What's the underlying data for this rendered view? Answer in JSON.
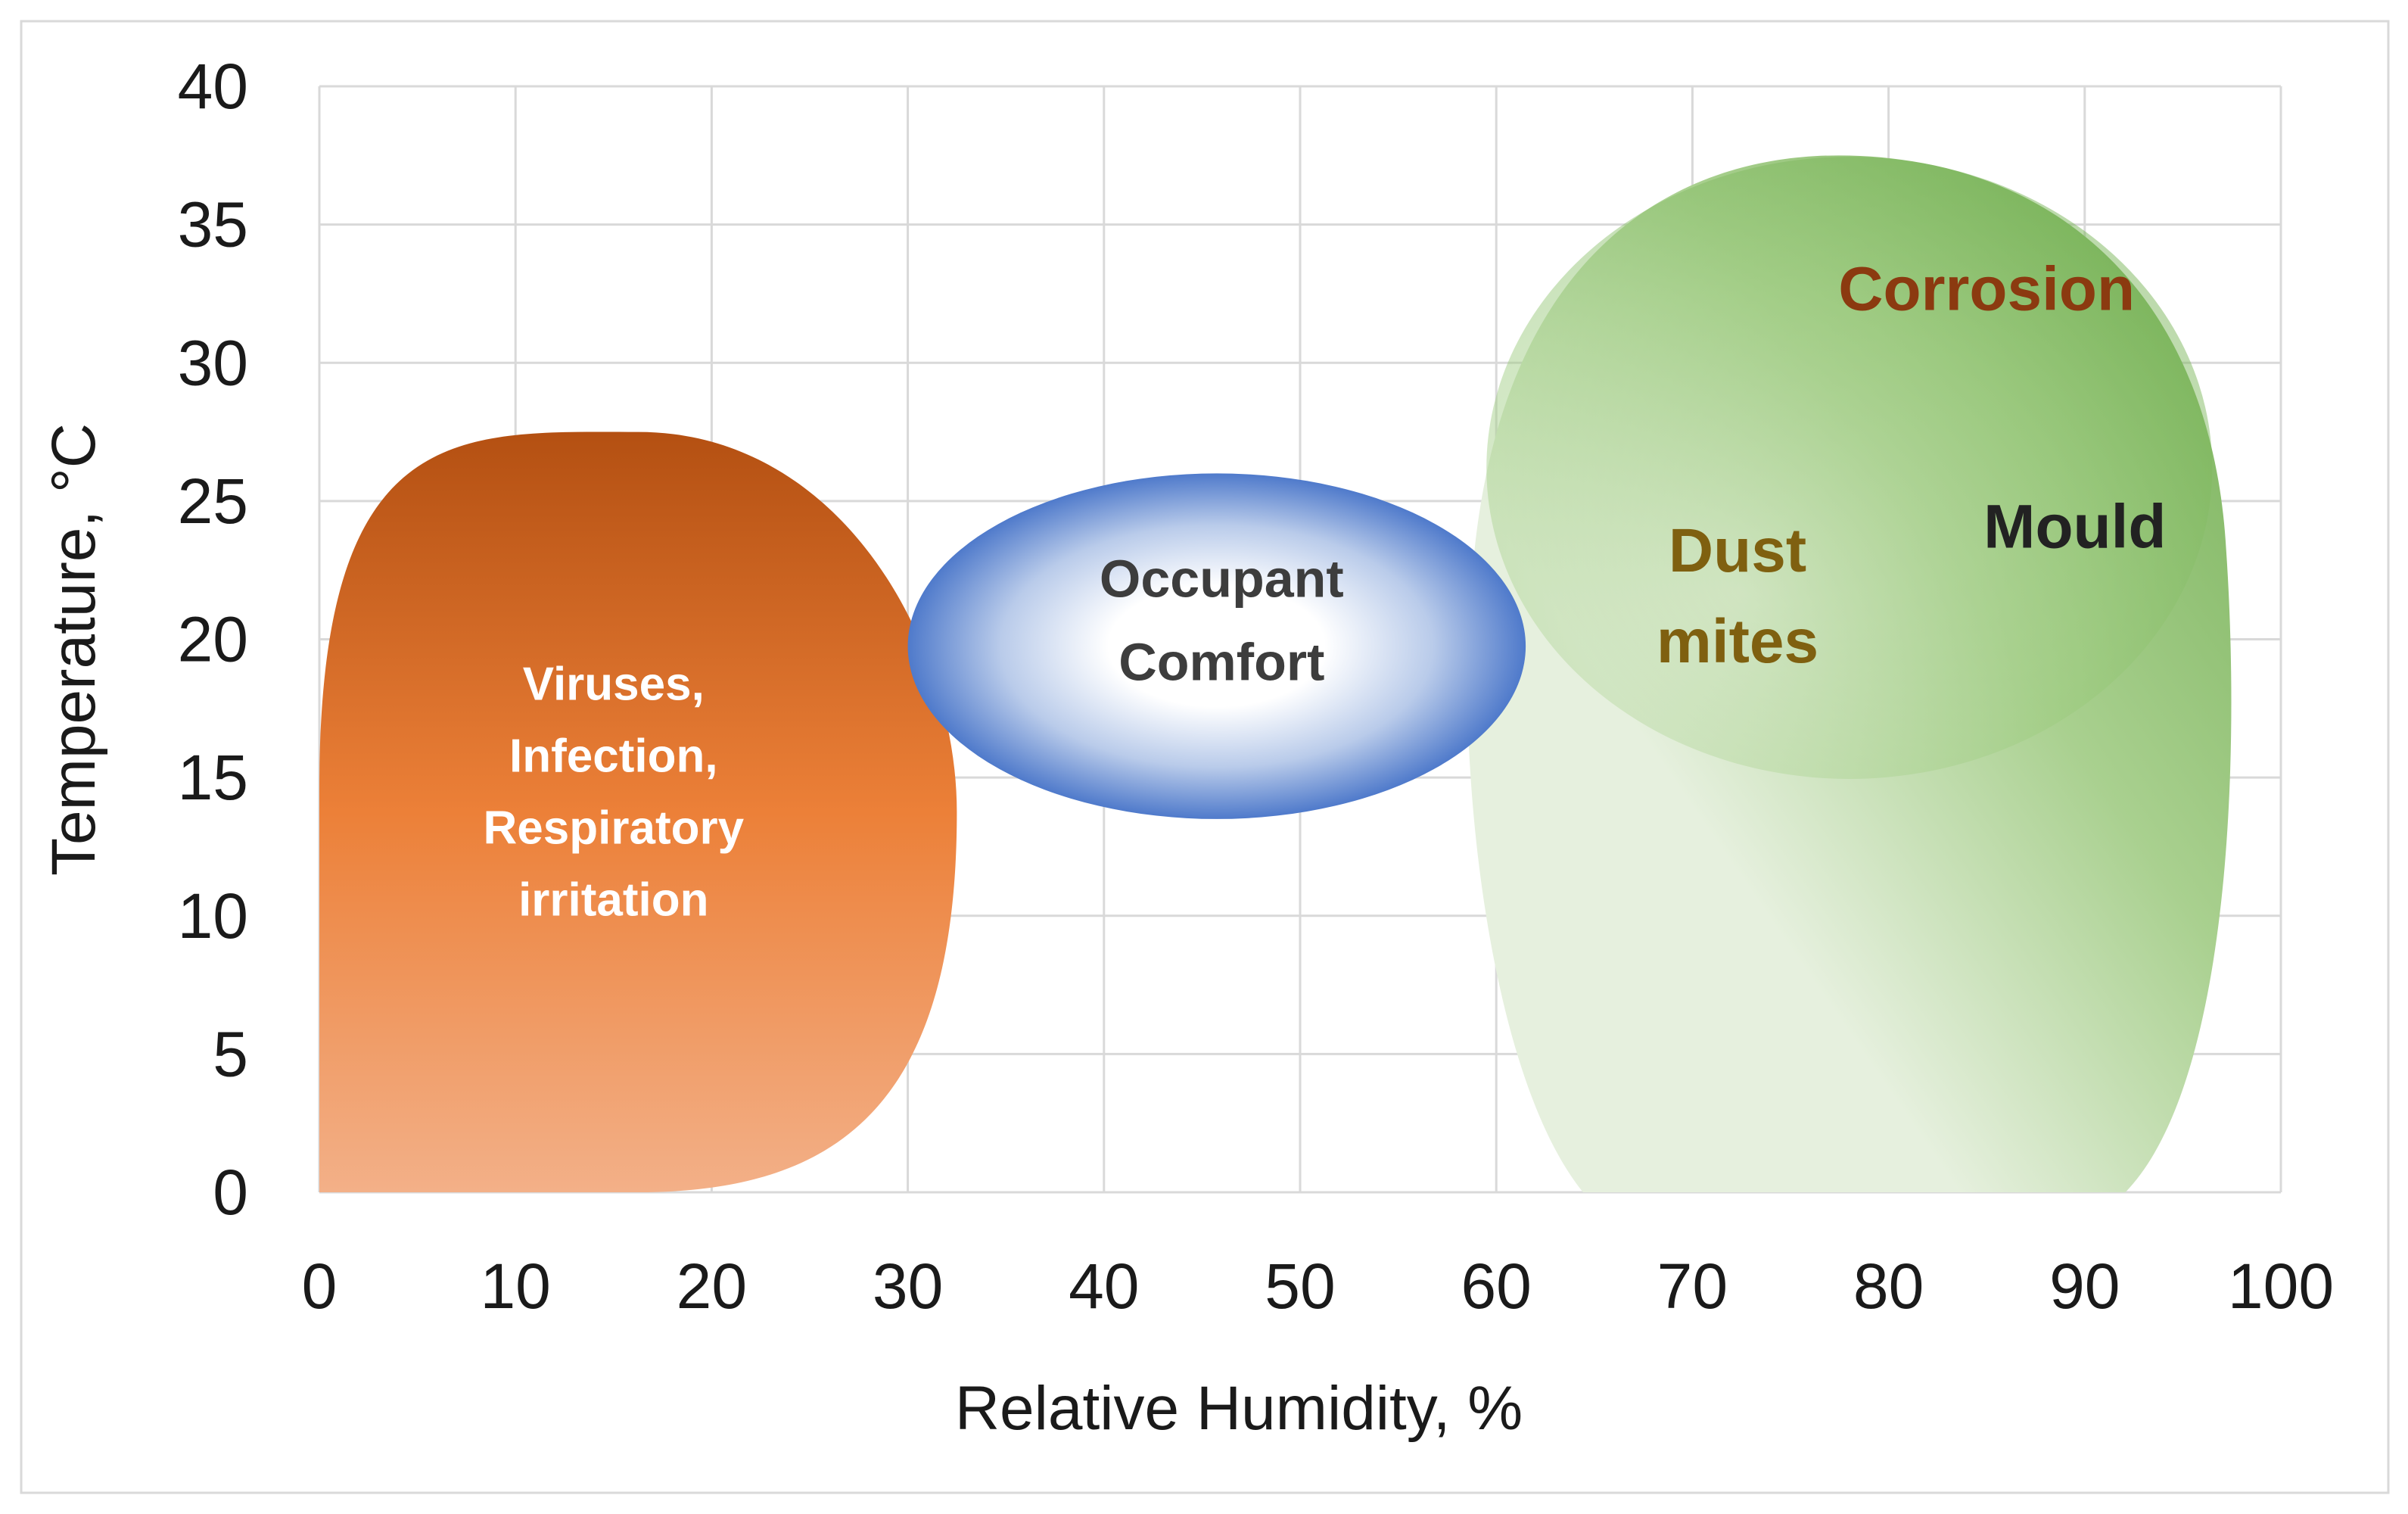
{
  "chart_data": {
    "type": "area",
    "xlabel": "Relative Humidity, %",
    "ylabel": "Temperature, °C",
    "xlim": [
      0,
      100
    ],
    "ylim": [
      0,
      40
    ],
    "x_ticks": [
      "0",
      "10",
      "20",
      "30",
      "40",
      "50",
      "60",
      "70",
      "80",
      "90",
      "100"
    ],
    "y_ticks": [
      "0",
      "5",
      "10",
      "15",
      "20",
      "25",
      "30",
      "35",
      "40"
    ],
    "grid": true,
    "regions": [
      {
        "id": "virus",
        "label_lines": [
          "Viruses,",
          "Infection,",
          "Respiratory",
          "irritation"
        ],
        "label_color": "#ffffff",
        "color_top": "#b45012",
        "color_bottom": "#f3b088",
        "rh_range": [
          0,
          32.5
        ],
        "temp_range": [
          0,
          27.5
        ],
        "label_at": [
          15,
          14.5
        ]
      },
      {
        "id": "comfort",
        "label_lines": [
          "Occupant",
          "Comfort"
        ],
        "label_color": "#3d3d3d",
        "color_edge": "#4f7acb",
        "color_center": "#ffffff",
        "rh_range": [
          30,
          61.5
        ],
        "temp_range": [
          13.5,
          26
        ],
        "label_at": [
          46,
          20.7
        ]
      },
      {
        "id": "green",
        "label_lines": [],
        "color_light": "#e6f0de",
        "color_dark": "#79b25a",
        "rh_range": [
          58.5,
          98
        ],
        "temp_range": [
          0,
          37.5
        ]
      }
    ],
    "annotations": [
      {
        "id": "corrosion",
        "text": "Corrosion",
        "color": "#8b3a10",
        "x": 85,
        "y": 32.7
      },
      {
        "id": "mould",
        "text": "Mould",
        "color": "#222222",
        "x": 89.5,
        "y": 24.1
      },
      {
        "id": "dust",
        "lines": [
          "Dust",
          "mites"
        ],
        "color": "#7f6010",
        "x": 72.3,
        "y": 21.6
      }
    ]
  }
}
